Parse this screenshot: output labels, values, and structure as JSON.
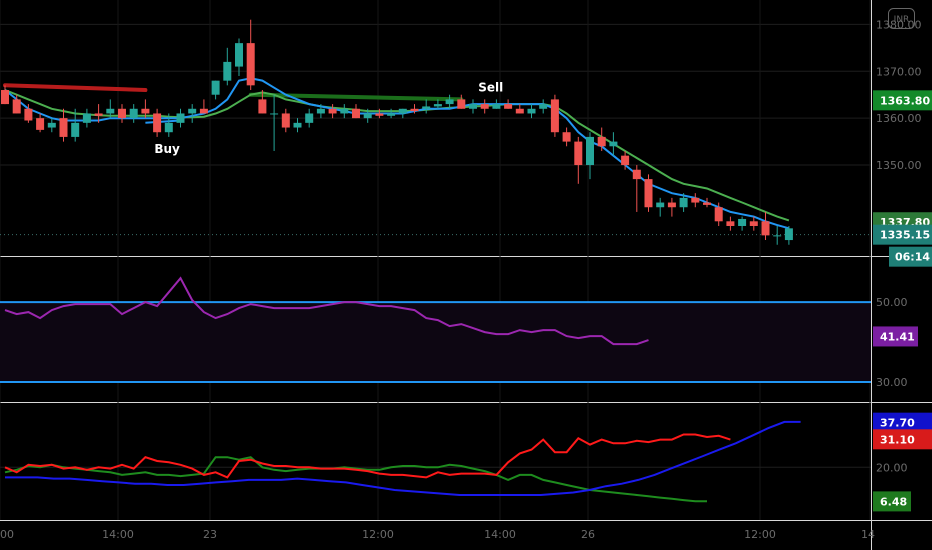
{
  "chart_data": {
    "type": "candlestick",
    "currency_badge": "INR",
    "price_pane": {
      "ylim": [
        1330.6,
        1385.2
      ],
      "y_ticks": [
        "1380.00",
        "1370.00",
        "1360.00",
        "1350.00"
      ],
      "candles": [
        [
          1366,
          1367,
          1363,
          1363
        ],
        [
          1364,
          1365,
          1361,
          1361
        ],
        [
          1362,
          1363,
          1359,
          1359.5
        ],
        [
          1360,
          1361,
          1357,
          1357.5
        ],
        [
          1358,
          1360,
          1357,
          1359
        ],
        [
          1360,
          1362,
          1355,
          1356
        ],
        [
          1356,
          1362,
          1355,
          1359
        ],
        [
          1359,
          1362,
          1358,
          1361
        ],
        [
          1361,
          1363,
          1359,
          1360.5
        ],
        [
          1361,
          1364,
          1360,
          1362
        ],
        [
          1362,
          1363,
          1359,
          1360
        ],
        [
          1360,
          1363,
          1359,
          1362
        ],
        [
          1362,
          1364,
          1360,
          1361
        ],
        [
          1361,
          1362,
          1356,
          1357
        ],
        [
          1357,
          1361,
          1356,
          1359
        ],
        [
          1359,
          1362,
          1358,
          1361
        ],
        [
          1361,
          1363,
          1359,
          1362
        ],
        [
          1362,
          1364,
          1361,
          1361
        ],
        [
          1365,
          1368,
          1364,
          1368
        ],
        [
          1368,
          1375,
          1367,
          1372
        ],
        [
          1371,
          1377,
          1369,
          1376
        ],
        [
          1376,
          1381,
          1366,
          1367
        ],
        [
          1364,
          1366,
          1361,
          1361
        ],
        [
          1361,
          1365,
          1353,
          1361
        ],
        [
          1361,
          1362,
          1357,
          1358
        ],
        [
          1358,
          1360,
          1357,
          1359
        ],
        [
          1359,
          1362,
          1358,
          1361
        ],
        [
          1361,
          1363,
          1360,
          1362
        ],
        [
          1362,
          1363,
          1360,
          1361
        ],
        [
          1361,
          1363,
          1360,
          1362
        ],
        [
          1362,
          1363,
          1360,
          1360
        ],
        [
          1360,
          1362,
          1359,
          1361
        ],
        [
          1361,
          1362,
          1360,
          1360.5
        ],
        [
          1360.5,
          1362,
          1360,
          1361
        ],
        [
          1361,
          1362,
          1360,
          1362
        ],
        [
          1362,
          1363,
          1361,
          1361.5
        ],
        [
          1362,
          1364,
          1361,
          1362.5
        ],
        [
          1362.5,
          1364,
          1362,
          1363
        ],
        [
          1363,
          1365,
          1362,
          1364
        ],
        [
          1364,
          1365,
          1362,
          1362
        ],
        [
          1362,
          1364,
          1361,
          1363
        ],
        [
          1363,
          1364,
          1361,
          1362
        ],
        [
          1362,
          1364,
          1362,
          1363
        ],
        [
          1363,
          1364,
          1362,
          1362
        ],
        [
          1362,
          1363,
          1361,
          1361
        ],
        [
          1361,
          1363,
          1360,
          1362
        ],
        [
          1362,
          1364,
          1361,
          1363
        ],
        [
          1364,
          1365,
          1356,
          1357
        ],
        [
          1357,
          1358,
          1354,
          1355
        ],
        [
          1355,
          1356,
          1346,
          1350
        ],
        [
          1350,
          1357,
          1347,
          1356
        ],
        [
          1356,
          1358,
          1353,
          1354
        ],
        [
          1354,
          1357,
          1352,
          1355
        ],
        [
          1352,
          1353,
          1349,
          1350
        ],
        [
          1349,
          1350,
          1340,
          1347
        ],
        [
          1347,
          1348,
          1340,
          1341
        ],
        [
          1341,
          1343,
          1339,
          1342
        ],
        [
          1342,
          1343,
          1339,
          1341
        ],
        [
          1341,
          1344,
          1340,
          1343
        ],
        [
          1343,
          1344,
          1341,
          1342
        ],
        [
          1342,
          1343,
          1341,
          1341.5
        ],
        [
          1341,
          1342,
          1337,
          1338
        ],
        [
          1338,
          1339,
          1336,
          1337
        ],
        [
          1337,
          1339,
          1336,
          1338.5
        ],
        [
          1338,
          1339,
          1336,
          1337
        ],
        [
          1338,
          1340,
          1334,
          1335
        ],
        [
          1335,
          1337,
          1333,
          1335
        ],
        [
          1334,
          1337,
          1333,
          1336.5
        ]
      ],
      "ma_blue": [
        1366,
        1364,
        1362,
        1361,
        1360,
        1359.5,
        1359.5,
        1359.5,
        1359.5,
        1360,
        1360,
        1360,
        1360,
        1360,
        1360,
        1360,
        1360.5,
        1361,
        1362,
        1364,
        1368,
        1368.5,
        1368,
        1366.5,
        1365,
        1364,
        1363,
        1362.5,
        1362,
        1361.5,
        1361,
        1361,
        1361,
        1361,
        1361,
        1361.5,
        1362,
        1362,
        1362,
        1362.5,
        1363,
        1363,
        1363,
        1363,
        1363,
        1363,
        1363,
        1362,
        1360,
        1357,
        1355,
        1354,
        1352,
        1350,
        1348,
        1346,
        1345,
        1344,
        1343.5,
        1343,
        1342,
        1341,
        1340,
        1339.5,
        1339,
        1338,
        1337.2,
        1336.5
      ],
      "ma_green": [
        1366,
        1365,
        1364,
        1363,
        1362,
        1361.5,
        1361,
        1360.8,
        1360.6,
        1360.5,
        1360.5,
        1360.5,
        1360.5,
        1360.5,
        1360.3,
        1360.2,
        1360.2,
        1360.3,
        1361,
        1362,
        1363.5,
        1365,
        1365.5,
        1365,
        1364,
        1363.5,
        1363,
        1362.5,
        1362.2,
        1362,
        1361.8,
        1361.5,
        1361.5,
        1361.5,
        1361.5,
        1361.6,
        1361.8,
        1362,
        1362.2,
        1362.3,
        1362.5,
        1362.6,
        1362.8,
        1363,
        1363,
        1363,
        1363,
        1362.5,
        1361,
        1359,
        1357.5,
        1356,
        1354.5,
        1353,
        1351.5,
        1350,
        1348.5,
        1347,
        1346,
        1345.5,
        1345,
        1344,
        1343,
        1342,
        1341,
        1340,
        1339,
        1338.2
      ],
      "trend_red": [
        [
          0,
          1367
        ],
        [
          12,
          1366
        ]
      ],
      "trend_green": [
        [
          21,
          1365
        ],
        [
          39,
          1364
        ]
      ],
      "buy_level": [
        [
          12,
          1359
        ],
        [
          15,
          1359.5
        ]
      ],
      "signals": [
        {
          "index": 13,
          "text": "Buy"
        },
        {
          "index": 41,
          "text": "Sell"
        }
      ],
      "labels": [
        {
          "text": "1363.80",
          "value": 1363.8,
          "color": "#138a2a"
        },
        {
          "text": "1337.80",
          "value": 1337.8,
          "color": "#2d7a38"
        },
        {
          "text": "1335.15",
          "value": 1335.15,
          "color": "#1f7f77"
        }
      ],
      "last_price_line": 1335.15,
      "countdown": "06:14"
    },
    "rsi_pane": {
      "ylim": [
        25,
        61.3
      ],
      "y_ticks": [
        "50.00",
        "30.00"
      ],
      "levels": [
        50,
        30
      ],
      "values": [
        48,
        47,
        47.5,
        46,
        48,
        49,
        49.5,
        49.5,
        49.5,
        49.5,
        47,
        48.5,
        50,
        49,
        52.5,
        56,
        50.5,
        47.5,
        46,
        47,
        48.5,
        49.5,
        49,
        48.5,
        48.5,
        48.5,
        48.5,
        49,
        49.5,
        50,
        50,
        49.5,
        49,
        49,
        48.5,
        48,
        46,
        45.5,
        44,
        44.5,
        43.5,
        42.5,
        42,
        42,
        43,
        42.5,
        43,
        43,
        41.5,
        41,
        41.5,
        41.5,
        39.5,
        39.5,
        39.5,
        40.5
      ],
      "label": {
        "text": "41.41",
        "value": 41.41,
        "color": "#7b1fa2"
      }
    },
    "dmi_pane": {
      "ylim": [
        -0.9,
        45.5
      ],
      "y_ticks": [
        "20.00"
      ],
      "plus_di": [
        18,
        19,
        20.5,
        20,
        21,
        20,
        19.5,
        19,
        18.5,
        18,
        17,
        17.5,
        18,
        17,
        17,
        16.5,
        17,
        17.5,
        24,
        24,
        23,
        24,
        20,
        19,
        18.5,
        19,
        19.5,
        19.5,
        19.5,
        20,
        19.5,
        19,
        19,
        20,
        20.5,
        20.5,
        20,
        20,
        21,
        20.5,
        19.5,
        18.5,
        17,
        15,
        17,
        17,
        15,
        14,
        13,
        12,
        11,
        10.5,
        10,
        9.5,
        9,
        8.5,
        8,
        7.5,
        7,
        6.5,
        6.5
      ],
      "minus_di": [
        20,
        18,
        21,
        20.5,
        21,
        19.5,
        20,
        19,
        20,
        19.5,
        21,
        19.5,
        24,
        22.5,
        22,
        21,
        19.5,
        17,
        18,
        16,
        22.5,
        23,
        21.5,
        20.5,
        20.5,
        20,
        20,
        19.5,
        19.5,
        19.5,
        19,
        18.5,
        17.5,
        17,
        17,
        16.5,
        16,
        18,
        17,
        17.5,
        17.5,
        17.5,
        17,
        22,
        25.5,
        27,
        31,
        26,
        26,
        31.5,
        29,
        31,
        29.5,
        29.5,
        30.5,
        30,
        31,
        31,
        33,
        33,
        32,
        32.5,
        31
      ],
      "adx": [
        16,
        16,
        16,
        15.5,
        15.5,
        15,
        14.5,
        14,
        13.5,
        13.5,
        13,
        13,
        13.5,
        14,
        14.5,
        15,
        15,
        15,
        15.5,
        15,
        14.5,
        14,
        13,
        12,
        11,
        10.5,
        10,
        9.5,
        9,
        9,
        9,
        9,
        9,
        9,
        9.5,
        10,
        11,
        12.5,
        13.5,
        15,
        17,
        19.5,
        22,
        24.5,
        27,
        29.5,
        32.5,
        35.5,
        38,
        38
      ],
      "labels": [
        {
          "text": "37.70",
          "value": 37.7,
          "color": "#1111cc"
        },
        {
          "text": "31.10",
          "value": 31.1,
          "color": "#d81b1b"
        },
        {
          "text": "6.48",
          "value": 6.48,
          "color": "#1e7a1e"
        }
      ]
    },
    "time_axis": [
      "00",
      "14:00",
      "23",
      "12:00",
      "14:00",
      "26",
      "12:00",
      "14"
    ]
  }
}
